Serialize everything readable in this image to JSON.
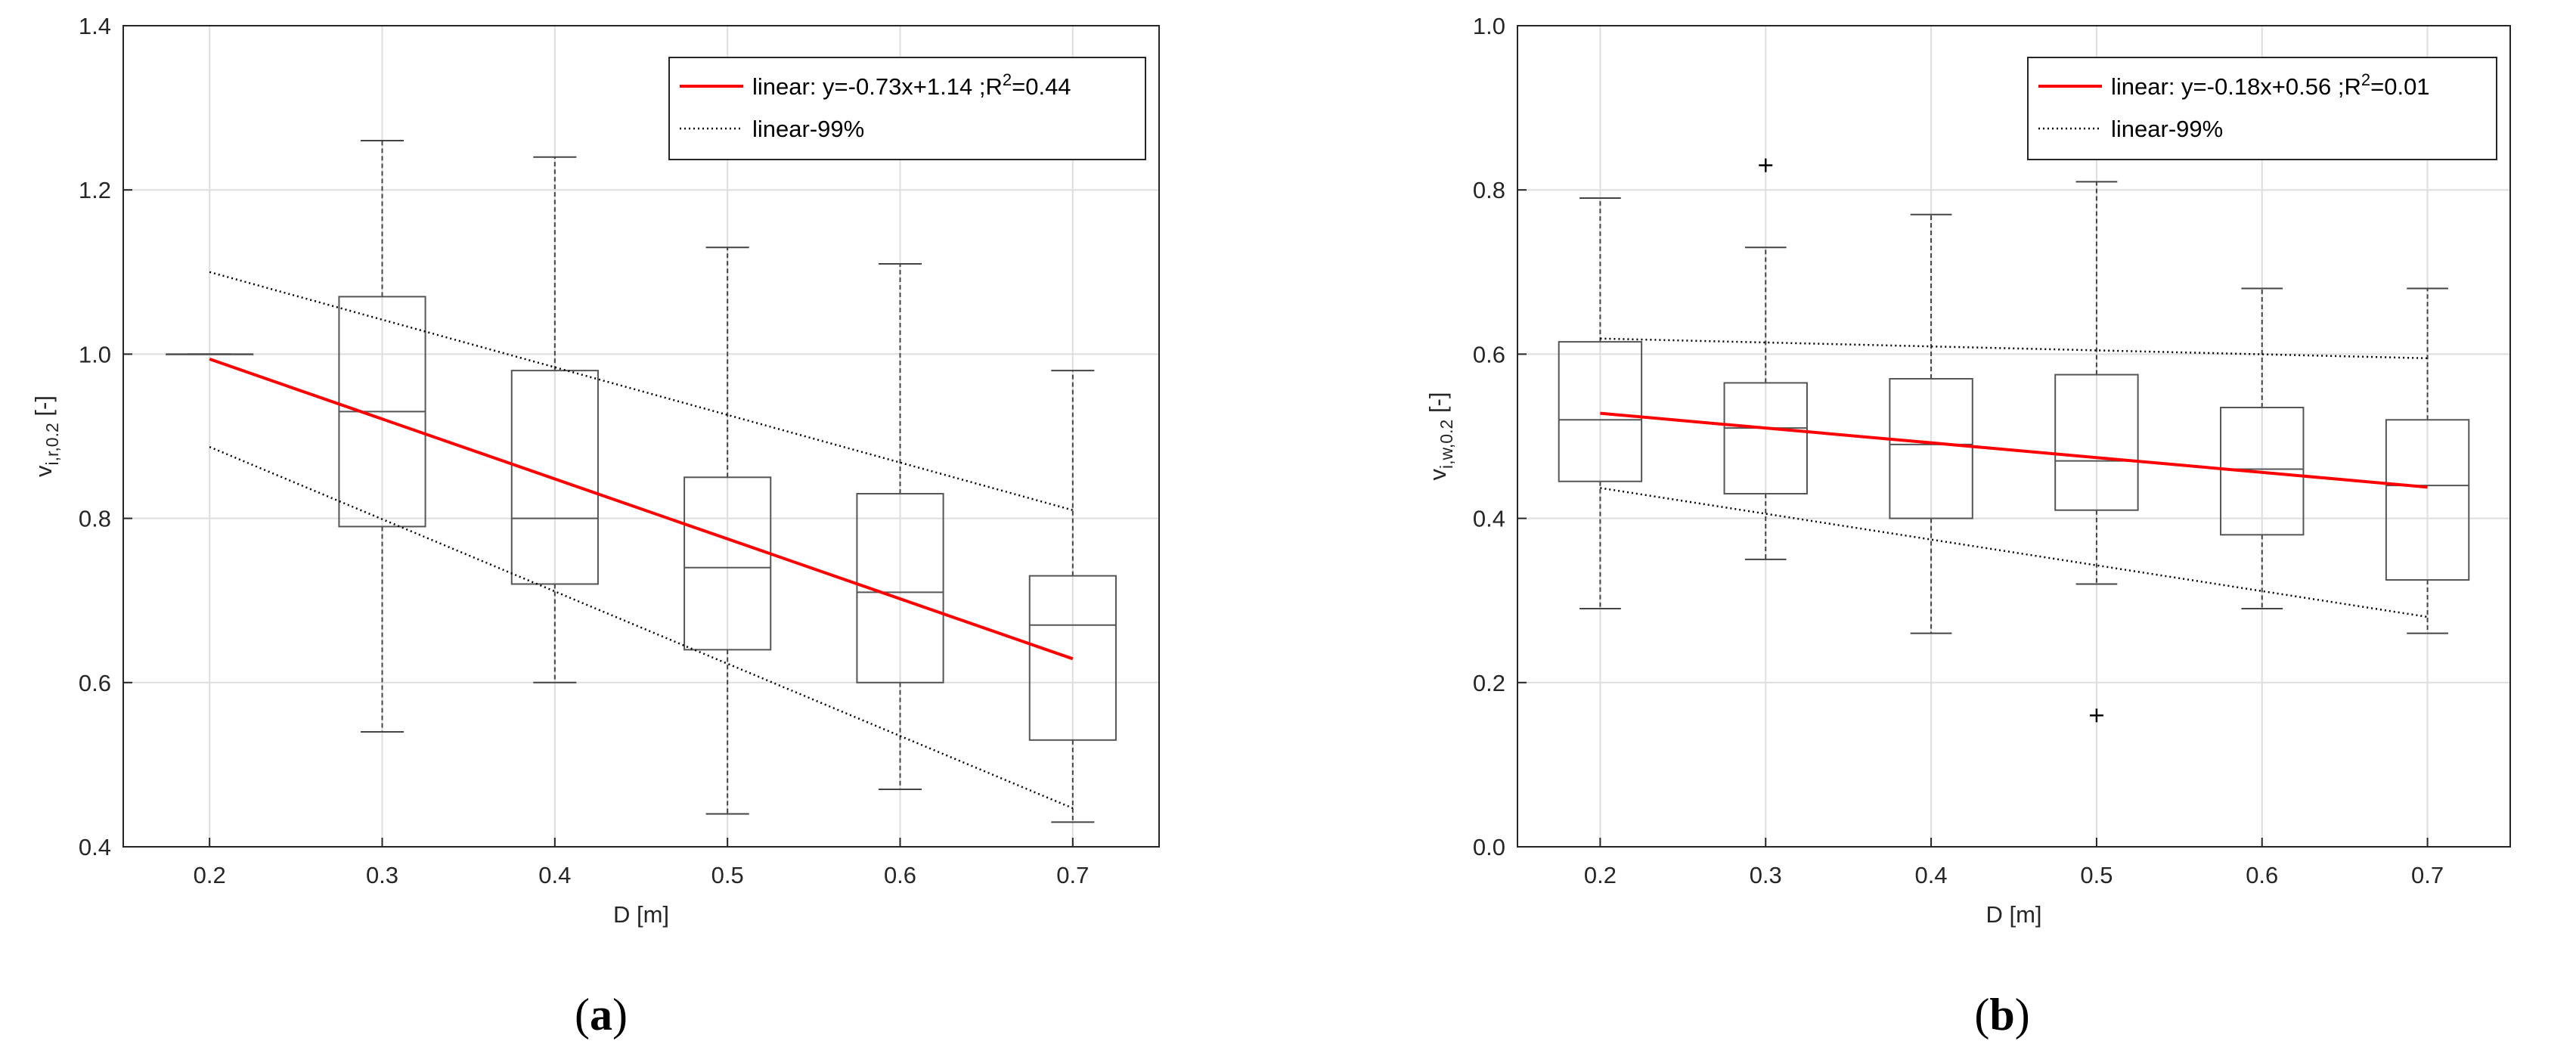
{
  "chart_data": [
    {
      "type": "box",
      "panel_label": "a",
      "xlabel": "D [m]",
      "ylabel": "v_{i,r,0.2} [-]",
      "ylabel_parts": {
        "base": "v",
        "sub": "i,r,0.2",
        "unit": " [-]"
      },
      "xlim": [
        0.15,
        0.75
      ],
      "ylim": [
        0.4,
        1.4
      ],
      "xticks": [
        "0.2",
        "0.3",
        "0.4",
        "0.5",
        "0.6",
        "0.7"
      ],
      "yticks": [
        "0.4",
        "0.6",
        "0.8",
        "1.0",
        "1.2",
        "1.4"
      ],
      "grid": true,
      "legend_position": "top-right",
      "boxes": [
        {
          "x": 0.2,
          "q1": 1.0,
          "median": 1.0,
          "q3": 1.0,
          "whisker_low": 1.0,
          "whisker_high": 1.0,
          "outliers": []
        },
        {
          "x": 0.3,
          "q1": 0.79,
          "median": 0.93,
          "q3": 1.07,
          "whisker_low": 0.54,
          "whisker_high": 1.26,
          "outliers": []
        },
        {
          "x": 0.4,
          "q1": 0.72,
          "median": 0.8,
          "q3": 0.98,
          "whisker_low": 0.6,
          "whisker_high": 1.24,
          "outliers": []
        },
        {
          "x": 0.5,
          "q1": 0.64,
          "median": 0.74,
          "q3": 0.85,
          "whisker_low": 0.44,
          "whisker_high": 1.13,
          "outliers": []
        },
        {
          "x": 0.6,
          "q1": 0.6,
          "median": 0.71,
          "q3": 0.83,
          "whisker_low": 0.47,
          "whisker_high": 1.11,
          "outliers": []
        },
        {
          "x": 0.7,
          "q1": 0.53,
          "median": 0.67,
          "q3": 0.73,
          "whisker_low": 0.43,
          "whisker_high": 0.98,
          "outliers": []
        }
      ],
      "series": [
        {
          "name": "linear: y=-0.73x+1.14 ;R^2=0.44",
          "legend_parts": {
            "before": "linear: y=-0.73x+1.14 ;R",
            "sup": "2",
            "after": "=0.44"
          },
          "style": "solid",
          "color": "#ff0000",
          "x": [
            0.2,
            0.7
          ],
          "y": [
            0.994,
            0.629
          ]
        },
        {
          "name": "linear-99%",
          "style": "dotted",
          "color": "#000000",
          "x": [
            0.2,
            0.7
          ],
          "y": [
            0.887,
            0.447
          ]
        },
        {
          "name": "",
          "style": "dotted",
          "color": "#000000",
          "x": [
            0.2,
            0.7
          ],
          "y": [
            1.1,
            0.81
          ]
        }
      ]
    },
    {
      "type": "box",
      "panel_label": "b",
      "xlabel": "D [m]",
      "ylabel": "v_{i,w,0.2} [-]",
      "ylabel_parts": {
        "base": "v",
        "sub": "i,w,0.2",
        "unit": " [-]"
      },
      "xlim": [
        0.15,
        0.75
      ],
      "ylim": [
        0.0,
        1.0
      ],
      "xticks": [
        "0.2",
        "0.3",
        "0.4",
        "0.5",
        "0.6",
        "0.7"
      ],
      "yticks": [
        "0.0",
        "0.2",
        "0.4",
        "0.6",
        "0.8",
        "1.0"
      ],
      "grid": true,
      "legend_position": "top-right",
      "boxes": [
        {
          "x": 0.2,
          "q1": 0.445,
          "median": 0.52,
          "q3": 0.615,
          "whisker_low": 0.29,
          "whisker_high": 0.79,
          "outliers": []
        },
        {
          "x": 0.3,
          "q1": 0.43,
          "median": 0.51,
          "q3": 0.565,
          "whisker_low": 0.35,
          "whisker_high": 0.73,
          "outliers": [
            0.83
          ]
        },
        {
          "x": 0.4,
          "q1": 0.4,
          "median": 0.49,
          "q3": 0.57,
          "whisker_low": 0.26,
          "whisker_high": 0.77,
          "outliers": []
        },
        {
          "x": 0.5,
          "q1": 0.41,
          "median": 0.47,
          "q3": 0.575,
          "whisker_low": 0.32,
          "whisker_high": 0.81,
          "outliers": [
            0.16
          ]
        },
        {
          "x": 0.6,
          "q1": 0.38,
          "median": 0.46,
          "q3": 0.535,
          "whisker_low": 0.29,
          "whisker_high": 0.68,
          "outliers": []
        },
        {
          "x": 0.7,
          "q1": 0.325,
          "median": 0.44,
          "q3": 0.52,
          "whisker_low": 0.26,
          "whisker_high": 0.68,
          "outliers": []
        }
      ],
      "series": [
        {
          "name": "linear: y=-0.18x+0.56 ;R^2=0.01",
          "legend_parts": {
            "before": "linear: y=-0.18x+0.56 ;R",
            "sup": "2",
            "after": "=0.01"
          },
          "style": "solid",
          "color": "#ff0000",
          "x": [
            0.2,
            0.7
          ],
          "y": [
            0.528,
            0.438
          ]
        },
        {
          "name": "linear-99%",
          "style": "dotted",
          "color": "#000000",
          "x": [
            0.2,
            0.7
          ],
          "y": [
            0.437,
            0.28
          ]
        },
        {
          "name": "",
          "style": "dotted",
          "color": "#000000",
          "x": [
            0.2,
            0.7
          ],
          "y": [
            0.619,
            0.595
          ]
        }
      ]
    }
  ]
}
